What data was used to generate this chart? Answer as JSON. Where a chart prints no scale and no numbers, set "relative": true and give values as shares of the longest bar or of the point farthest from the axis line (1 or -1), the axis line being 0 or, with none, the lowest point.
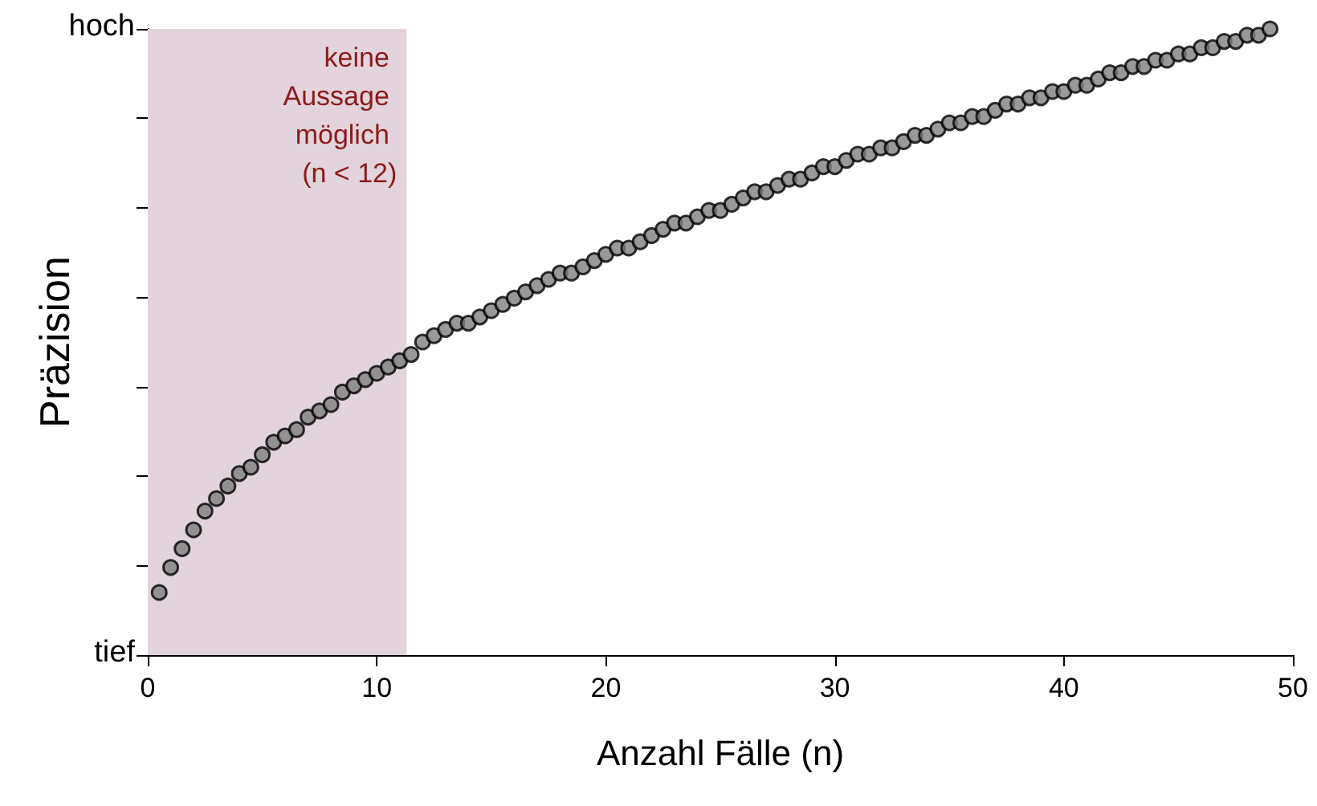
{
  "chart_data": {
    "type": "scatter",
    "xlabel": "Anzahl Fälle (n)",
    "ylabel": "Präzision",
    "x": [
      0.5,
      1,
      1.5,
      2,
      2.5,
      3,
      3.5,
      4,
      4.5,
      5,
      5.5,
      6,
      6.5,
      7,
      7.5,
      8,
      8.5,
      9,
      9.5,
      10,
      10.5,
      11,
      11.5,
      12,
      12.5,
      13,
      13.5,
      14,
      14.5,
      15,
      15.5,
      16,
      16.5,
      17,
      17.5,
      18,
      18.5,
      19,
      19.5,
      20,
      20.5,
      21,
      21.5,
      22,
      22.5,
      23,
      23.5,
      24,
      24.5,
      25,
      25.5,
      26,
      26.5,
      27,
      27.5,
      28,
      28.5,
      29,
      29.5,
      30,
      30.5,
      31,
      31.5,
      32,
      32.5,
      33,
      33.5,
      34,
      34.5,
      35,
      35.5,
      36,
      36.5,
      37,
      37.5,
      38,
      38.5,
      39,
      39.5,
      40,
      40.5,
      41,
      41.5,
      42,
      42.5,
      43,
      43.5,
      44,
      44.5,
      45,
      45.5,
      46,
      46.5,
      47,
      47.5,
      48,
      48.5,
      49
    ],
    "series": [
      {
        "color": "#7f7f7f",
        "values": [
          0.1,
          0.14,
          0.17,
          0.2,
          0.23,
          0.25,
          0.27,
          0.29,
          0.3,
          0.32,
          0.34,
          0.35,
          0.36,
          0.38,
          0.39,
          0.4,
          0.42,
          0.43,
          0.44,
          0.45,
          0.46,
          0.47,
          0.48,
          0.5,
          0.51,
          0.52,
          0.53,
          0.53,
          0.54,
          0.55,
          0.56,
          0.57,
          0.58,
          0.59,
          0.6,
          0.61,
          0.61,
          0.62,
          0.63,
          0.64,
          0.65,
          0.65,
          0.66,
          0.67,
          0.68,
          0.69,
          0.69,
          0.7,
          0.71,
          0.71,
          0.72,
          0.73,
          0.74,
          0.74,
          0.75,
          0.76,
          0.76,
          0.77,
          0.78,
          0.78,
          0.79,
          0.8,
          0.8,
          0.81,
          0.81,
          0.82,
          0.83,
          0.83,
          0.84,
          0.85,
          0.85,
          0.86,
          0.86,
          0.87,
          0.88,
          0.88,
          0.89,
          0.89,
          0.9,
          0.9,
          0.91,
          0.91,
          0.92,
          0.93,
          0.93,
          0.94,
          0.94,
          0.95,
          0.95,
          0.96,
          0.96,
          0.97,
          0.97,
          0.98,
          0.98,
          0.99,
          0.99,
          1.0
        ]
      }
    ],
    "marker": "circle",
    "grid": false,
    "relative": true,
    "annotations": [
      "hoch",
      "tief"
    ],
    "xlim": [
      0,
      50
    ],
    "xticks": [
      0,
      10,
      20,
      30,
      40,
      50
    ],
    "bands": [
      {
        "axis": "x",
        "from": 0,
        "to": 11.3,
        "label": "keine Aussage möglich (n < 12)",
        "color": "#e2d3dc"
      }
    ]
  }
}
